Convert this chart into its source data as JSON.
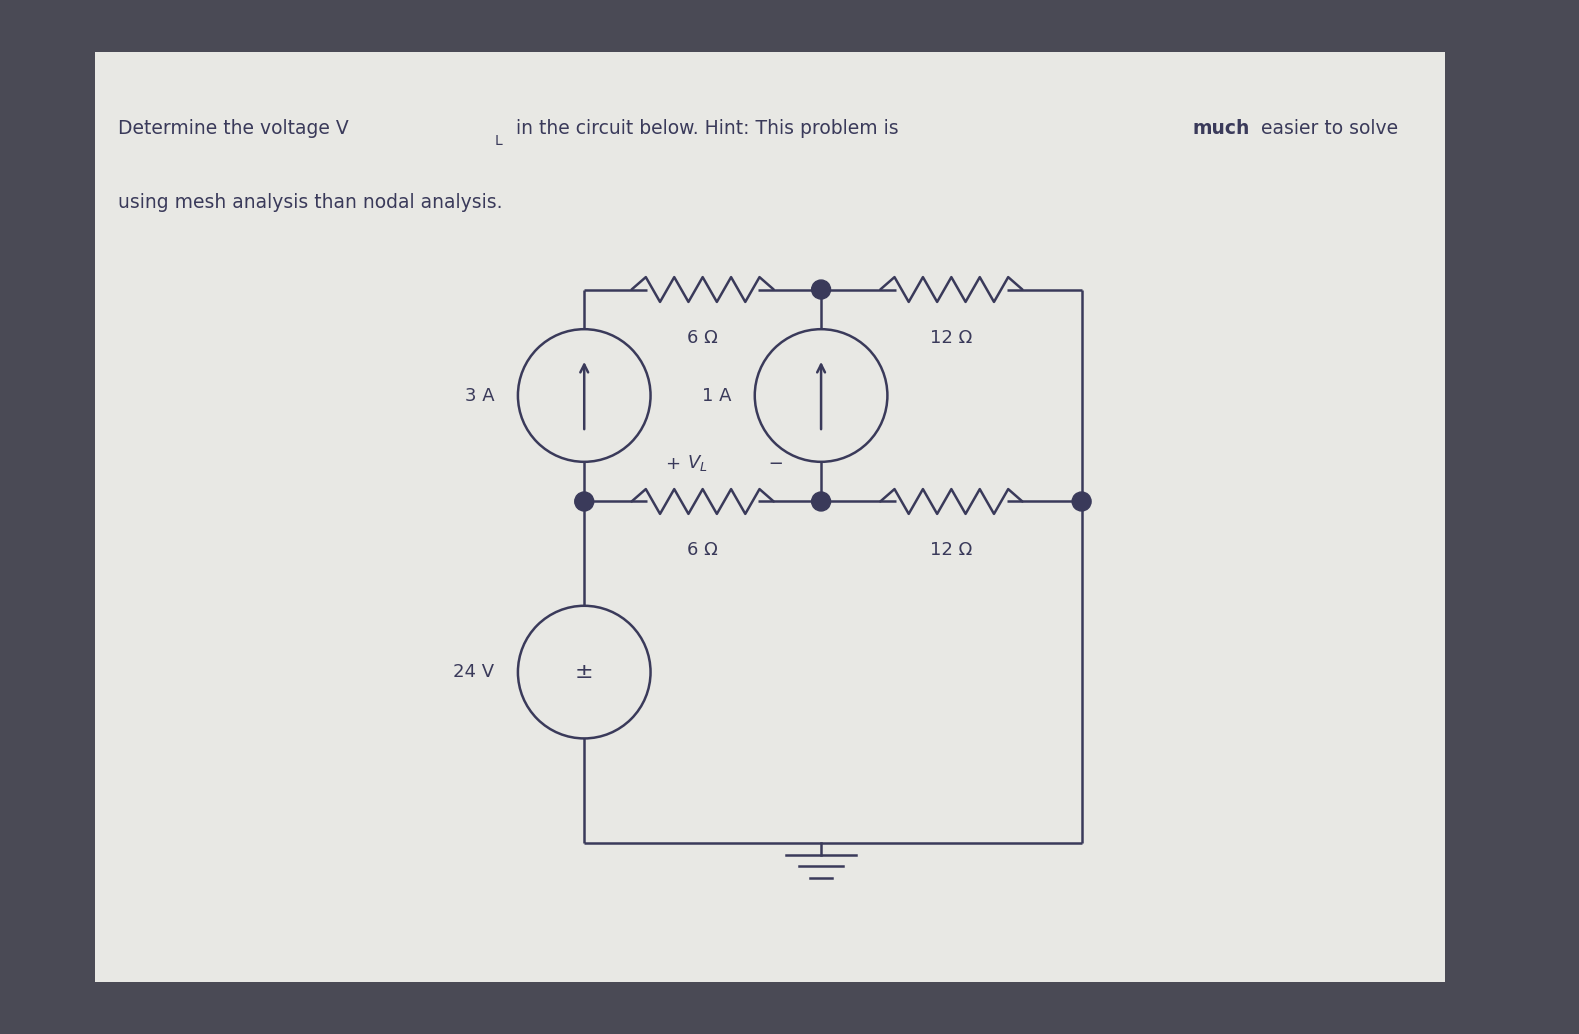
{
  "background_color": "#4a4a55",
  "card_color": "#e8e8e4",
  "circuit_color": "#3a3a5a",
  "text_color": "#3a3a5a",
  "title_line1": "Determine the voltage V",
  "title_sub": "L",
  "title_rest": " in the circuit below. Hint: This problem is ",
  "title_bold": "much",
  "title_end": " easier to solve",
  "title_line2": "using mesh analysis than nodal analysis.",
  "font_size": 13.5,
  "lw": 1.8,
  "xl": 0.37,
  "xm": 0.52,
  "xr": 0.685,
  "yt": 0.72,
  "ym": 0.515,
  "yb": 0.185,
  "r_cs": 0.042,
  "r_vs": 0.042
}
